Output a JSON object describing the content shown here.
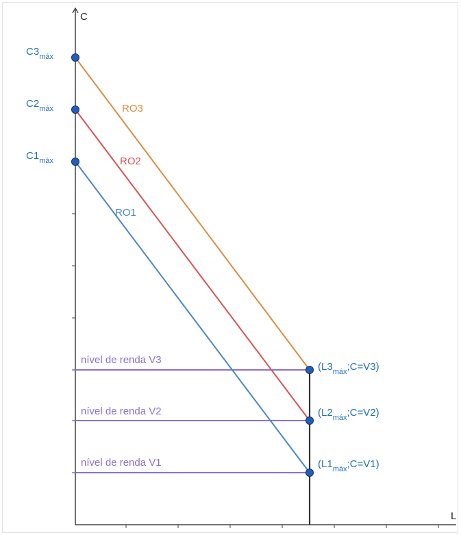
{
  "axes": {
    "y_label": "C",
    "x_label": "L"
  },
  "colors": {
    "ro1": "#4a86c8",
    "ro2": "#d9534f",
    "ro3": "#e08a3c",
    "renda": "#8c6fd4",
    "points": "#1f5fbf",
    "labels": "#1f6fbf",
    "axis": "#222222"
  },
  "lines": [
    {
      "label": "RO1",
      "color_key": "ro1"
    },
    {
      "label": "RO2",
      "color_key": "ro2"
    },
    {
      "label": "RO3",
      "color_key": "ro3"
    }
  ],
  "intercepts": [
    {
      "base": "C1",
      "sub": "máx"
    },
    {
      "base": "C2",
      "sub": "máx"
    },
    {
      "base": "C3",
      "sub": "máx"
    }
  ],
  "renda_levels": [
    {
      "label": "nível de renda V1"
    },
    {
      "label": "nível de renda V2"
    },
    {
      "label": "nível de renda V3"
    }
  ],
  "end_points": [
    {
      "open": "(L1",
      "sub": "máx",
      "close": ";C=V1)"
    },
    {
      "open": "(L2",
      "sub": "máx",
      "close": ";C=V2)"
    },
    {
      "open": "(L3",
      "sub": "máx",
      "close": ";C=V3)"
    }
  ]
}
